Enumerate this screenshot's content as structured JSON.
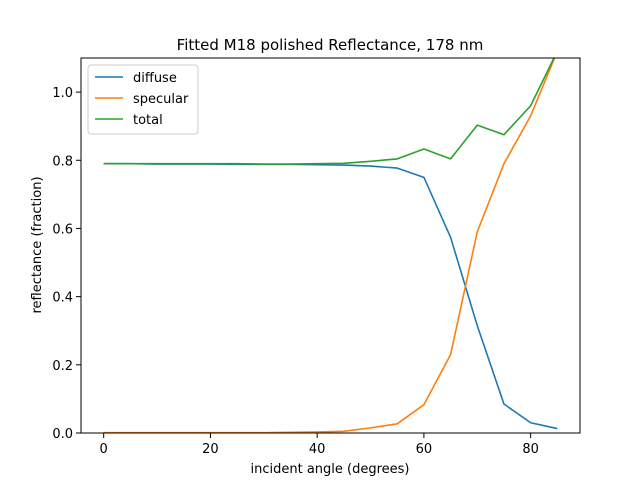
{
  "chart_data": {
    "type": "line",
    "title": "Fitted M18 polished Reflectance, 178 nm",
    "xlabel": "incident angle (degrees)",
    "ylabel": "reflectance (fraction)",
    "xlim": [
      -4.25,
      89.25
    ],
    "ylim": [
      0.0,
      1.1
    ],
    "xticks": [
      0,
      20,
      40,
      60,
      80
    ],
    "xtick_labels": [
      "0",
      "20",
      "40",
      "60",
      "80"
    ],
    "yticks": [
      0.0,
      0.2,
      0.4,
      0.6,
      0.8,
      1.0
    ],
    "ytick_labels": [
      "0.0",
      "0.2",
      "0.4",
      "0.6",
      "0.8",
      "1.0"
    ],
    "grid": false,
    "legend_position": "top-left",
    "x": [
      0,
      5,
      10,
      15,
      20,
      25,
      30,
      35,
      40,
      45,
      50,
      55,
      60,
      65,
      70,
      75,
      80,
      85
    ],
    "series": [
      {
        "name": "diffuse",
        "color": "#1f77b4",
        "values": [
          0.79,
          0.79,
          0.789,
          0.789,
          0.789,
          0.788,
          0.788,
          0.788,
          0.787,
          0.786,
          0.783,
          0.777,
          0.75,
          0.574,
          0.315,
          0.085,
          0.03,
          0.013
        ]
      },
      {
        "name": "specular",
        "color": "#ff7f0e",
        "values": [
          0.001,
          0.001,
          0.001,
          0.001,
          0.001,
          0.001,
          0.001,
          0.002,
          0.003,
          0.005,
          0.015,
          0.027,
          0.083,
          0.23,
          0.59,
          0.79,
          0.93,
          1.12
        ]
      },
      {
        "name": "total",
        "color": "#2ca02c",
        "values": [
          0.79,
          0.79,
          0.79,
          0.79,
          0.79,
          0.79,
          0.789,
          0.789,
          0.79,
          0.791,
          0.797,
          0.804,
          0.833,
          0.804,
          0.903,
          0.875,
          0.96,
          1.12
        ]
      }
    ]
  }
}
